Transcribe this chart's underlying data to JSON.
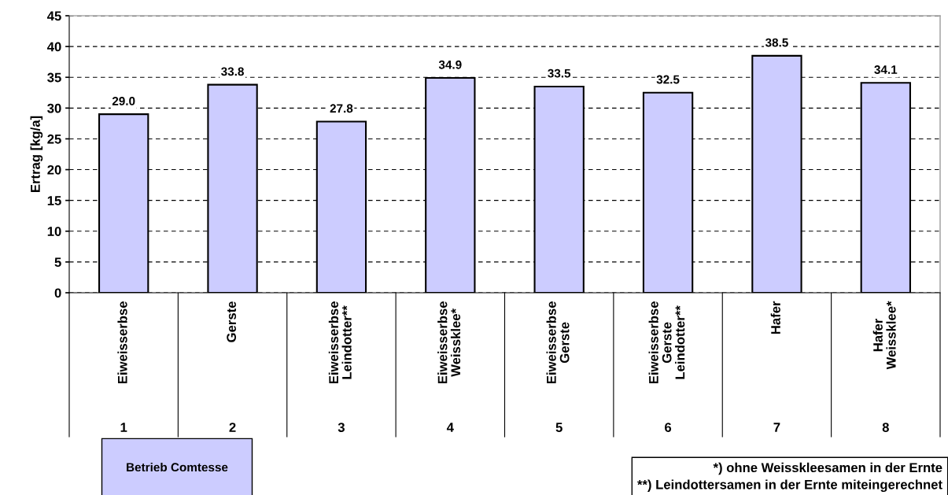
{
  "chart_data": {
    "type": "bar",
    "ylabel": "Ertrag [kg/a]",
    "categories": [
      "Eiweisserbse",
      "Gerste",
      "Eiweisserbse\nLeindotter**",
      "Eiweisserbse\nWeissklee*",
      "Eiweisserbse\nGerste",
      "Eiweisserbse\nGerste\nLeindotter**",
      "Hafer",
      "Hafer\nWeissklee*"
    ],
    "series": [
      {
        "name": "Betrieb Comtesse",
        "color": "#ccccff",
        "values": [
          29.0,
          33.8,
          27.8,
          34.9,
          33.5,
          32.5,
          38.5,
          34.1
        ],
        "value_labels": [
          "29.0",
          "33.8",
          "27.8",
          "34.9",
          "33.5",
          "32.5",
          "38.5",
          "34.1"
        ]
      }
    ],
    "ylim": [
      0,
      45
    ],
    "yticks": [
      0,
      5,
      10,
      15,
      20,
      25,
      30,
      35,
      40,
      45
    ],
    "grid": "y",
    "legend": "bottom left",
    "annotations": [
      "1",
      "2",
      "3",
      "4",
      "5",
      "6",
      "7",
      "8",
      "*) ohne Weisskleesamen in der Ernte\n**) Leindottersamen in der Ernte miteingerechnet"
    ]
  }
}
